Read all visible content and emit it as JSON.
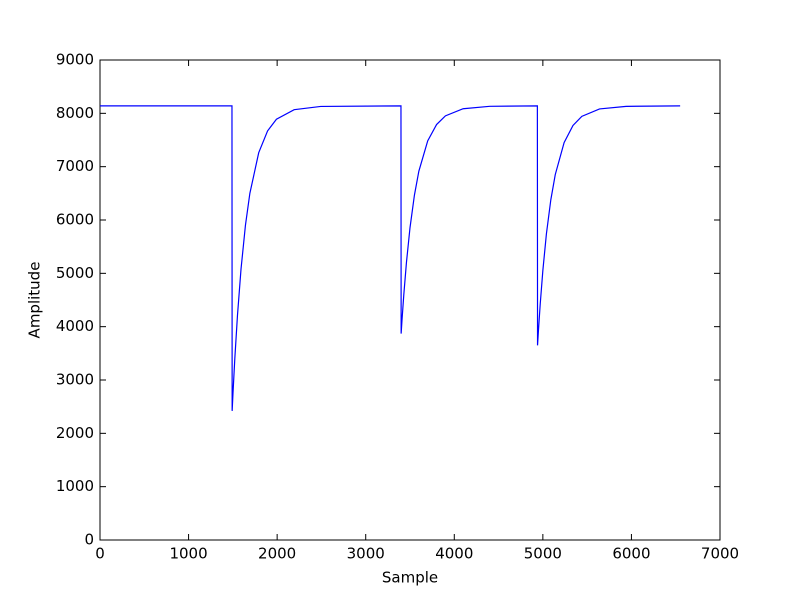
{
  "chart_data": {
    "type": "line",
    "xlabel": "Sample",
    "ylabel": "Amplitude",
    "x": [
      0,
      1490,
      1492,
      1502,
      1522,
      1552,
      1592,
      1642,
      1692,
      1792,
      1892,
      1992,
      2192,
      2492,
      3398,
      3400,
      3410,
      3430,
      3460,
      3500,
      3550,
      3600,
      3700,
      3800,
      3900,
      4100,
      4400,
      4938,
      4940,
      4950,
      4970,
      5000,
      5040,
      5090,
      5140,
      5240,
      5340,
      5440,
      5640,
      5940,
      6550
    ],
    "series": [
      {
        "color": "#0000ff",
        "values": [
          8140,
          8140,
          2420,
          2769,
          3398,
          4208,
          5077,
          5900,
          6500,
          7262,
          7671,
          7889,
          8068,
          8129,
          8140,
          3870,
          4130,
          4600,
          5206,
          5855,
          6467,
          6916,
          7485,
          7790,
          7953,
          8086,
          8132,
          8140,
          3650,
          3924,
          4418,
          5055,
          5738,
          6380,
          6851,
          7451,
          7772,
          7943,
          8083,
          8131,
          8140
        ]
      }
    ],
    "xlim": [
      0,
      7000
    ],
    "xticks": [
      0,
      1000,
      2000,
      3000,
      4000,
      5000,
      6000,
      7000
    ],
    "ylim": [
      0,
      9000
    ],
    "yticks": [
      0,
      1000,
      2000,
      3000,
      4000,
      5000,
      6000,
      7000,
      8000,
      9000
    ]
  }
}
